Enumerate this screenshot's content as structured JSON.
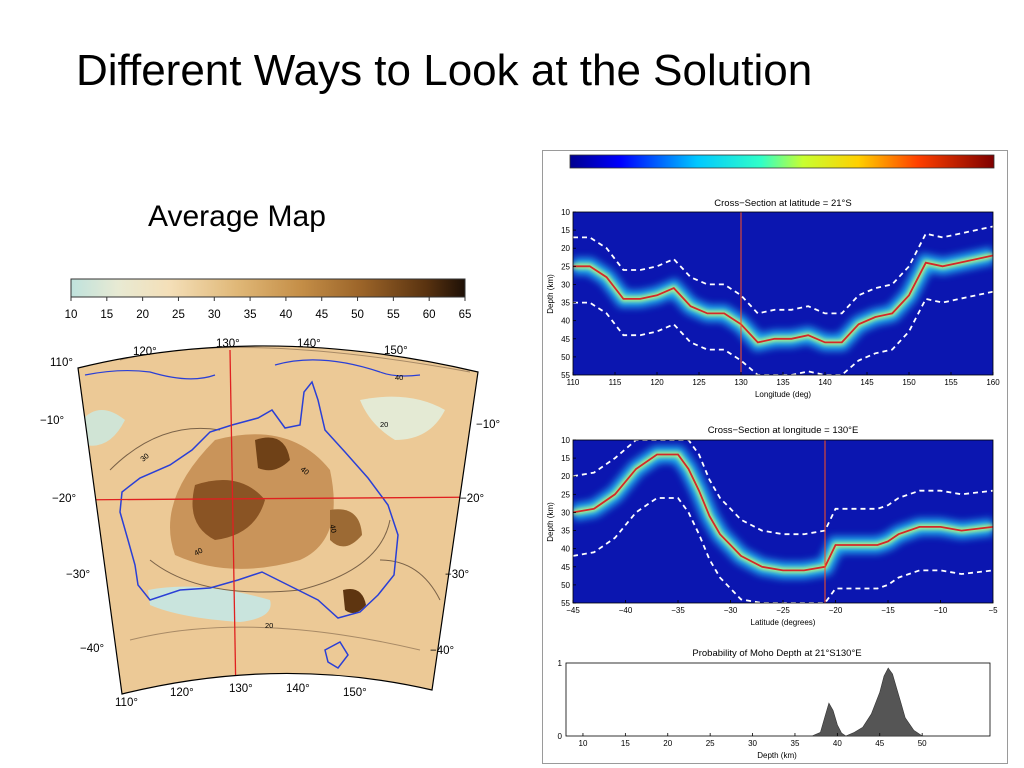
{
  "slide": {
    "title": "Different Ways to Look at the Solution",
    "subtitle": "Average Map"
  },
  "colors": {
    "australia_outline": "#2a3fd6",
    "section_line": "#e02020",
    "moho_curve": "#d42828",
    "map_high": "#6a3c12",
    "map_low": "#bfe2dd"
  },
  "map_colorbar": {
    "ticks": [
      "10",
      "15",
      "20",
      "25",
      "30",
      "35",
      "40",
      "45",
      "50",
      "55",
      "60",
      "65"
    ]
  },
  "map": {
    "lon_labels_top": [
      "120°",
      "130°",
      "140°",
      "150°"
    ],
    "lon_labels_bottom": [
      "110°",
      "120°",
      "130°",
      "140°",
      "150°"
    ],
    "corner_left": "110°",
    "lat_labels_left": [
      "−10°",
      "−20°",
      "−30°",
      "−40°"
    ],
    "lat_labels_right": [
      "−10°",
      "−20°",
      "−30°",
      "−40°"
    ],
    "contour_labels": [
      "30",
      "40",
      "40",
      "40",
      "20",
      "20",
      "40"
    ]
  },
  "chart_data": [
    {
      "type": "heatmap",
      "title": "Cross−Section at latitude = 21°S",
      "xlabel": "Longitude (deg)",
      "ylabel": "Depth (km)",
      "xlim": [
        110,
        160
      ],
      "ylim": [
        55,
        10
      ],
      "x_ticks": [
        "110",
        "115",
        "120",
        "125",
        "130",
        "135",
        "140",
        "145",
        "150",
        "155",
        "160"
      ],
      "y_ticks": [
        "10",
        "15",
        "20",
        "25",
        "30",
        "35",
        "40",
        "45",
        "50",
        "55"
      ],
      "marker_x": 130,
      "series": [
        {
          "x": [
            110,
            112,
            114,
            116,
            118,
            120,
            122,
            124,
            126,
            128,
            130,
            132,
            134,
            136,
            138,
            140,
            142,
            144,
            146,
            148,
            150,
            152,
            154,
            156,
            158,
            160
          ],
          "y": [
            25,
            25,
            28,
            34,
            34,
            33,
            31,
            36,
            38,
            38,
            41,
            46,
            45,
            45,
            44,
            46,
            46,
            41,
            39,
            38,
            33,
            24,
            25,
            24,
            23,
            22
          ]
        }
      ]
    },
    {
      "type": "heatmap",
      "title": "Cross−Section at longitude = 130°E",
      "xlabel": "Latitude (degrees)",
      "ylabel": "Depth (km)",
      "xlim": [
        -45,
        -5
      ],
      "ylim": [
        55,
        10
      ],
      "x_ticks": [
        "−45",
        "−40",
        "−35",
        "−30",
        "−25",
        "−20",
        "−15",
        "−10",
        "−5"
      ],
      "y_ticks": [
        "10",
        "15",
        "20",
        "25",
        "30",
        "35",
        "40",
        "45",
        "50",
        "55"
      ],
      "marker_x": -21,
      "series": [
        {
          "x": [
            -45,
            -43,
            -41,
            -39,
            -37,
            -35,
            -34,
            -33,
            -32,
            -31,
            -30,
            -29,
            -27,
            -25,
            -23,
            -21,
            -20,
            -18,
            -16,
            -15,
            -14,
            -12,
            -10,
            -8,
            -5
          ],
          "y": [
            30,
            29,
            25,
            18,
            14,
            14,
            18,
            24,
            31,
            36,
            39,
            42,
            45,
            46,
            46,
            45,
            39,
            39,
            39,
            38,
            36,
            34,
            34,
            35,
            34
          ]
        }
      ]
    },
    {
      "type": "area",
      "title": "Probability of Moho Depth at 21°S130°E",
      "xlabel": "Depth (km)",
      "xlim": [
        8,
        58
      ],
      "ylim": [
        0,
        1
      ],
      "x_ticks": [
        "10",
        "15",
        "20",
        "25",
        "30",
        "35",
        "40",
        "45",
        "50"
      ],
      "y_ticks": [
        "0",
        "1"
      ],
      "x": [
        37,
        38,
        38.5,
        39,
        39.5,
        40,
        40.5,
        41,
        42,
        43,
        44,
        45,
        45.5,
        46,
        46.5,
        47,
        47.5,
        48,
        49,
        50
      ],
      "y": [
        0,
        0.05,
        0.25,
        0.45,
        0.35,
        0.15,
        0.04,
        0,
        0.05,
        0.12,
        0.3,
        0.6,
        0.82,
        0.93,
        0.85,
        0.65,
        0.45,
        0.25,
        0.08,
        0
      ]
    }
  ]
}
